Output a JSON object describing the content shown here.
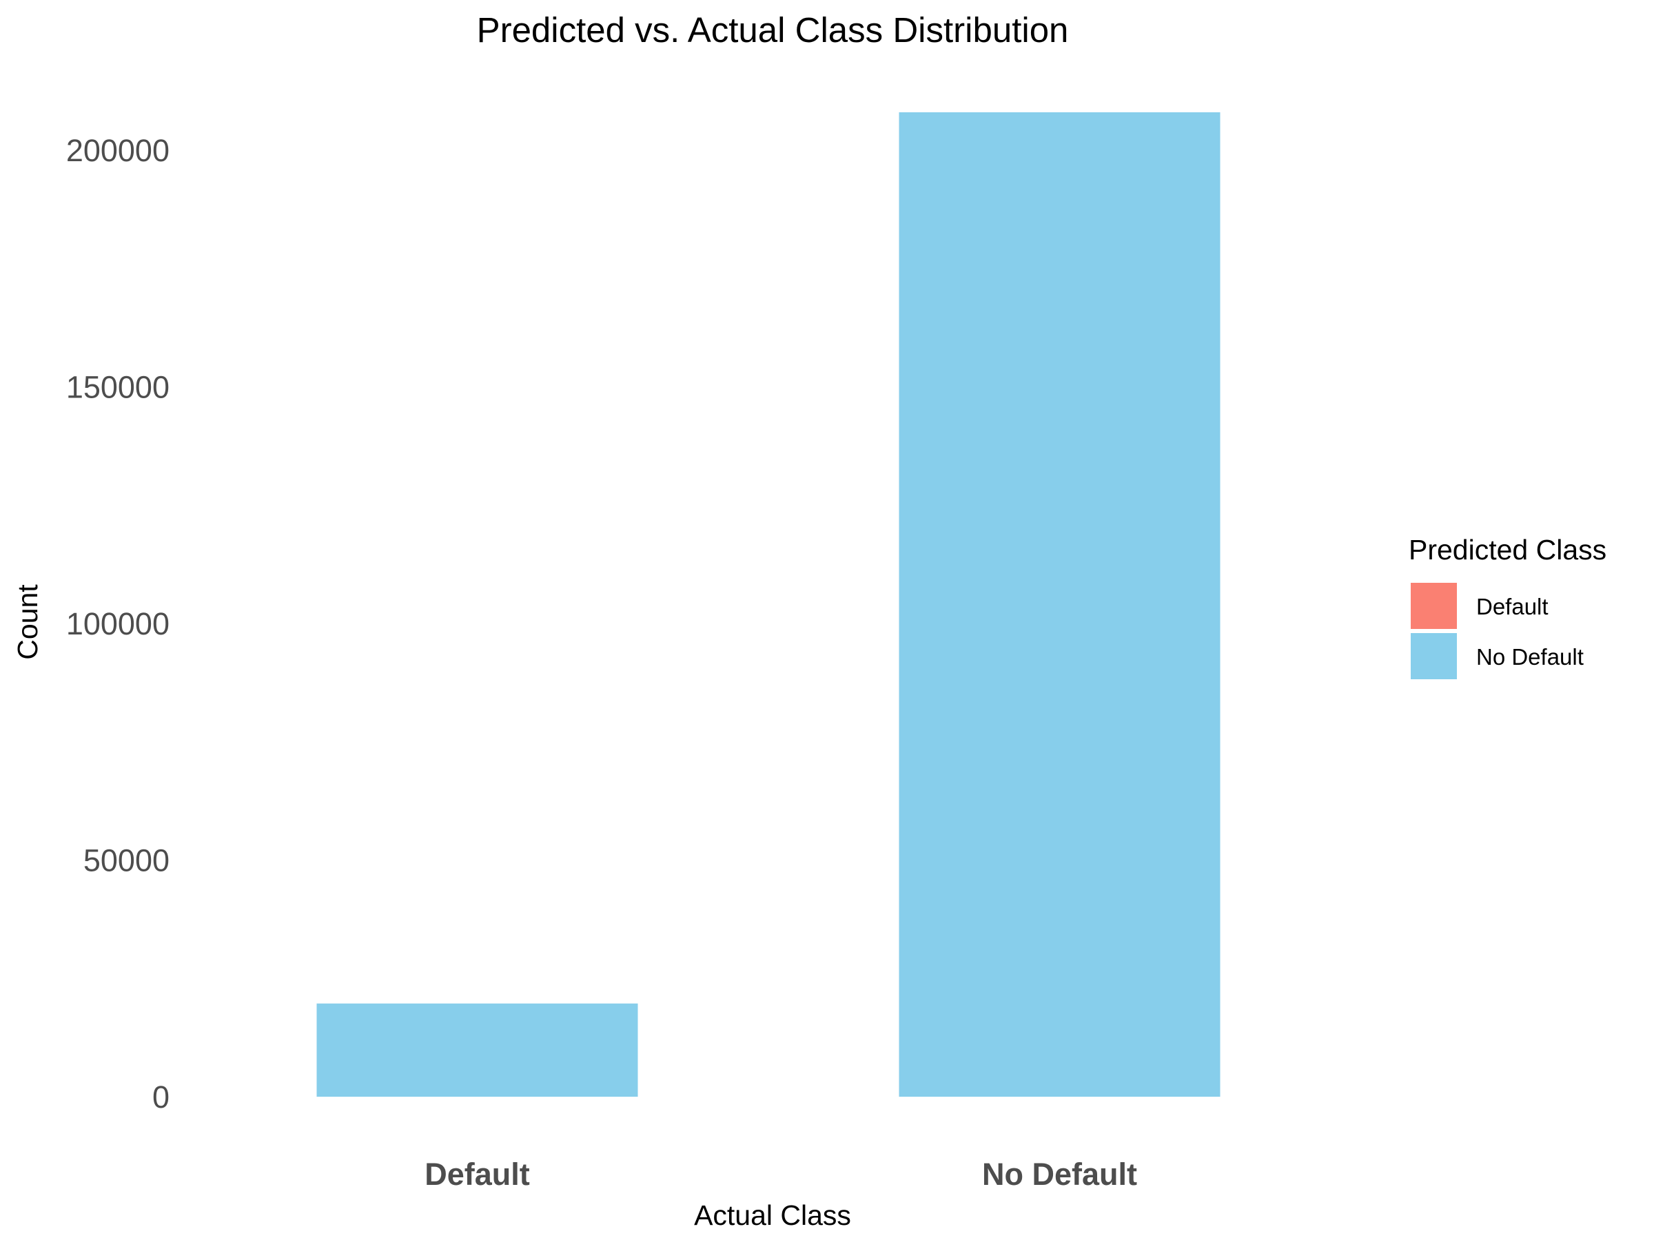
{
  "chart_data": {
    "type": "bar",
    "title": "Predicted vs. Actual Class Distribution",
    "xlabel": "Actual Class",
    "ylabel": "Count",
    "categories": [
      "Default",
      "No Default"
    ],
    "series": [
      {
        "name": "Default",
        "color": "#FA8072",
        "values": [
          0,
          0
        ]
      },
      {
        "name": "No Default",
        "color": "#87CEEB",
        "values": [
          19700,
          208000
        ]
      }
    ],
    "stacked": true,
    "yticks": [
      0,
      50000,
      100000,
      150000,
      200000
    ],
    "ylim": [
      0,
      212000
    ],
    "grid": false,
    "legend": {
      "title": "Predicted Class",
      "position": "right",
      "entries": [
        "Default",
        "No Default"
      ]
    }
  }
}
